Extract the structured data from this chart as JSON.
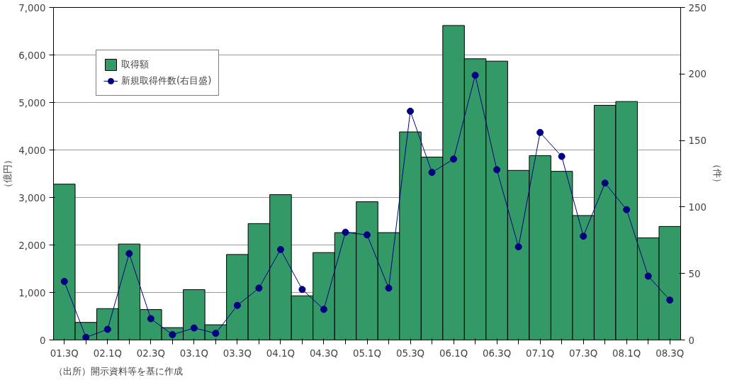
{
  "chart_data": {
    "type": "bar",
    "ylabel": "（億円）",
    "y2label": "（件）",
    "categories": [
      "01.3Q",
      null,
      "02.1Q",
      null,
      "02.3Q",
      null,
      "03.1Q",
      null,
      "03.3Q",
      null,
      "04.1Q",
      null,
      "04.3Q",
      null,
      "05.1Q",
      null,
      "05.3Q",
      null,
      "06.1Q",
      null,
      "06.3Q",
      null,
      "07.1Q",
      null,
      "07.3Q",
      null,
      "08.1Q",
      null,
      "08.3Q"
    ],
    "series": [
      {
        "name": "取得額",
        "color": "#339966",
        "values": [
          3280,
          370,
          660,
          2020,
          640,
          260,
          1060,
          320,
          1800,
          2450,
          3060,
          930,
          1840,
          2260,
          2910,
          2260,
          4380,
          3850,
          6620,
          5920,
          5870,
          3570,
          3880,
          3550,
          2620,
          4940,
          5020,
          2150,
          2390
        ]
      },
      {
        "name": "新規取得件数(右目盛)",
        "type": "line",
        "axis": "y2",
        "color": "#000080",
        "marker": "circle",
        "values": [
          44,
          2,
          8,
          65,
          16,
          4,
          9,
          5,
          26,
          39,
          68,
          38,
          23,
          81,
          79,
          39,
          172,
          126,
          136,
          199,
          128,
          70,
          156,
          138,
          78,
          118,
          98,
          48,
          30
        ]
      }
    ],
    "ylim": [
      0,
      7000
    ],
    "yticks": [
      0,
      {
        "value": 1000,
        "label": "1,000"
      },
      {
        "value": 2000,
        "label": "2,000"
      },
      {
        "value": 3000,
        "label": "3,000"
      },
      {
        "value": 4000,
        "label": "4,000"
      },
      {
        "value": 5000,
        "label": "5,000"
      },
      {
        "value": 6000,
        "label": "6,000"
      },
      {
        "value": 7000,
        "label": "7,000"
      }
    ],
    "y2lim": [
      0,
      250
    ],
    "y2ticks": [
      0,
      50,
      100,
      150,
      200,
      250
    ],
    "grid": "y",
    "legend": "top left",
    "annotations": [
      "（出所）開示資料等を基に作成"
    ]
  }
}
